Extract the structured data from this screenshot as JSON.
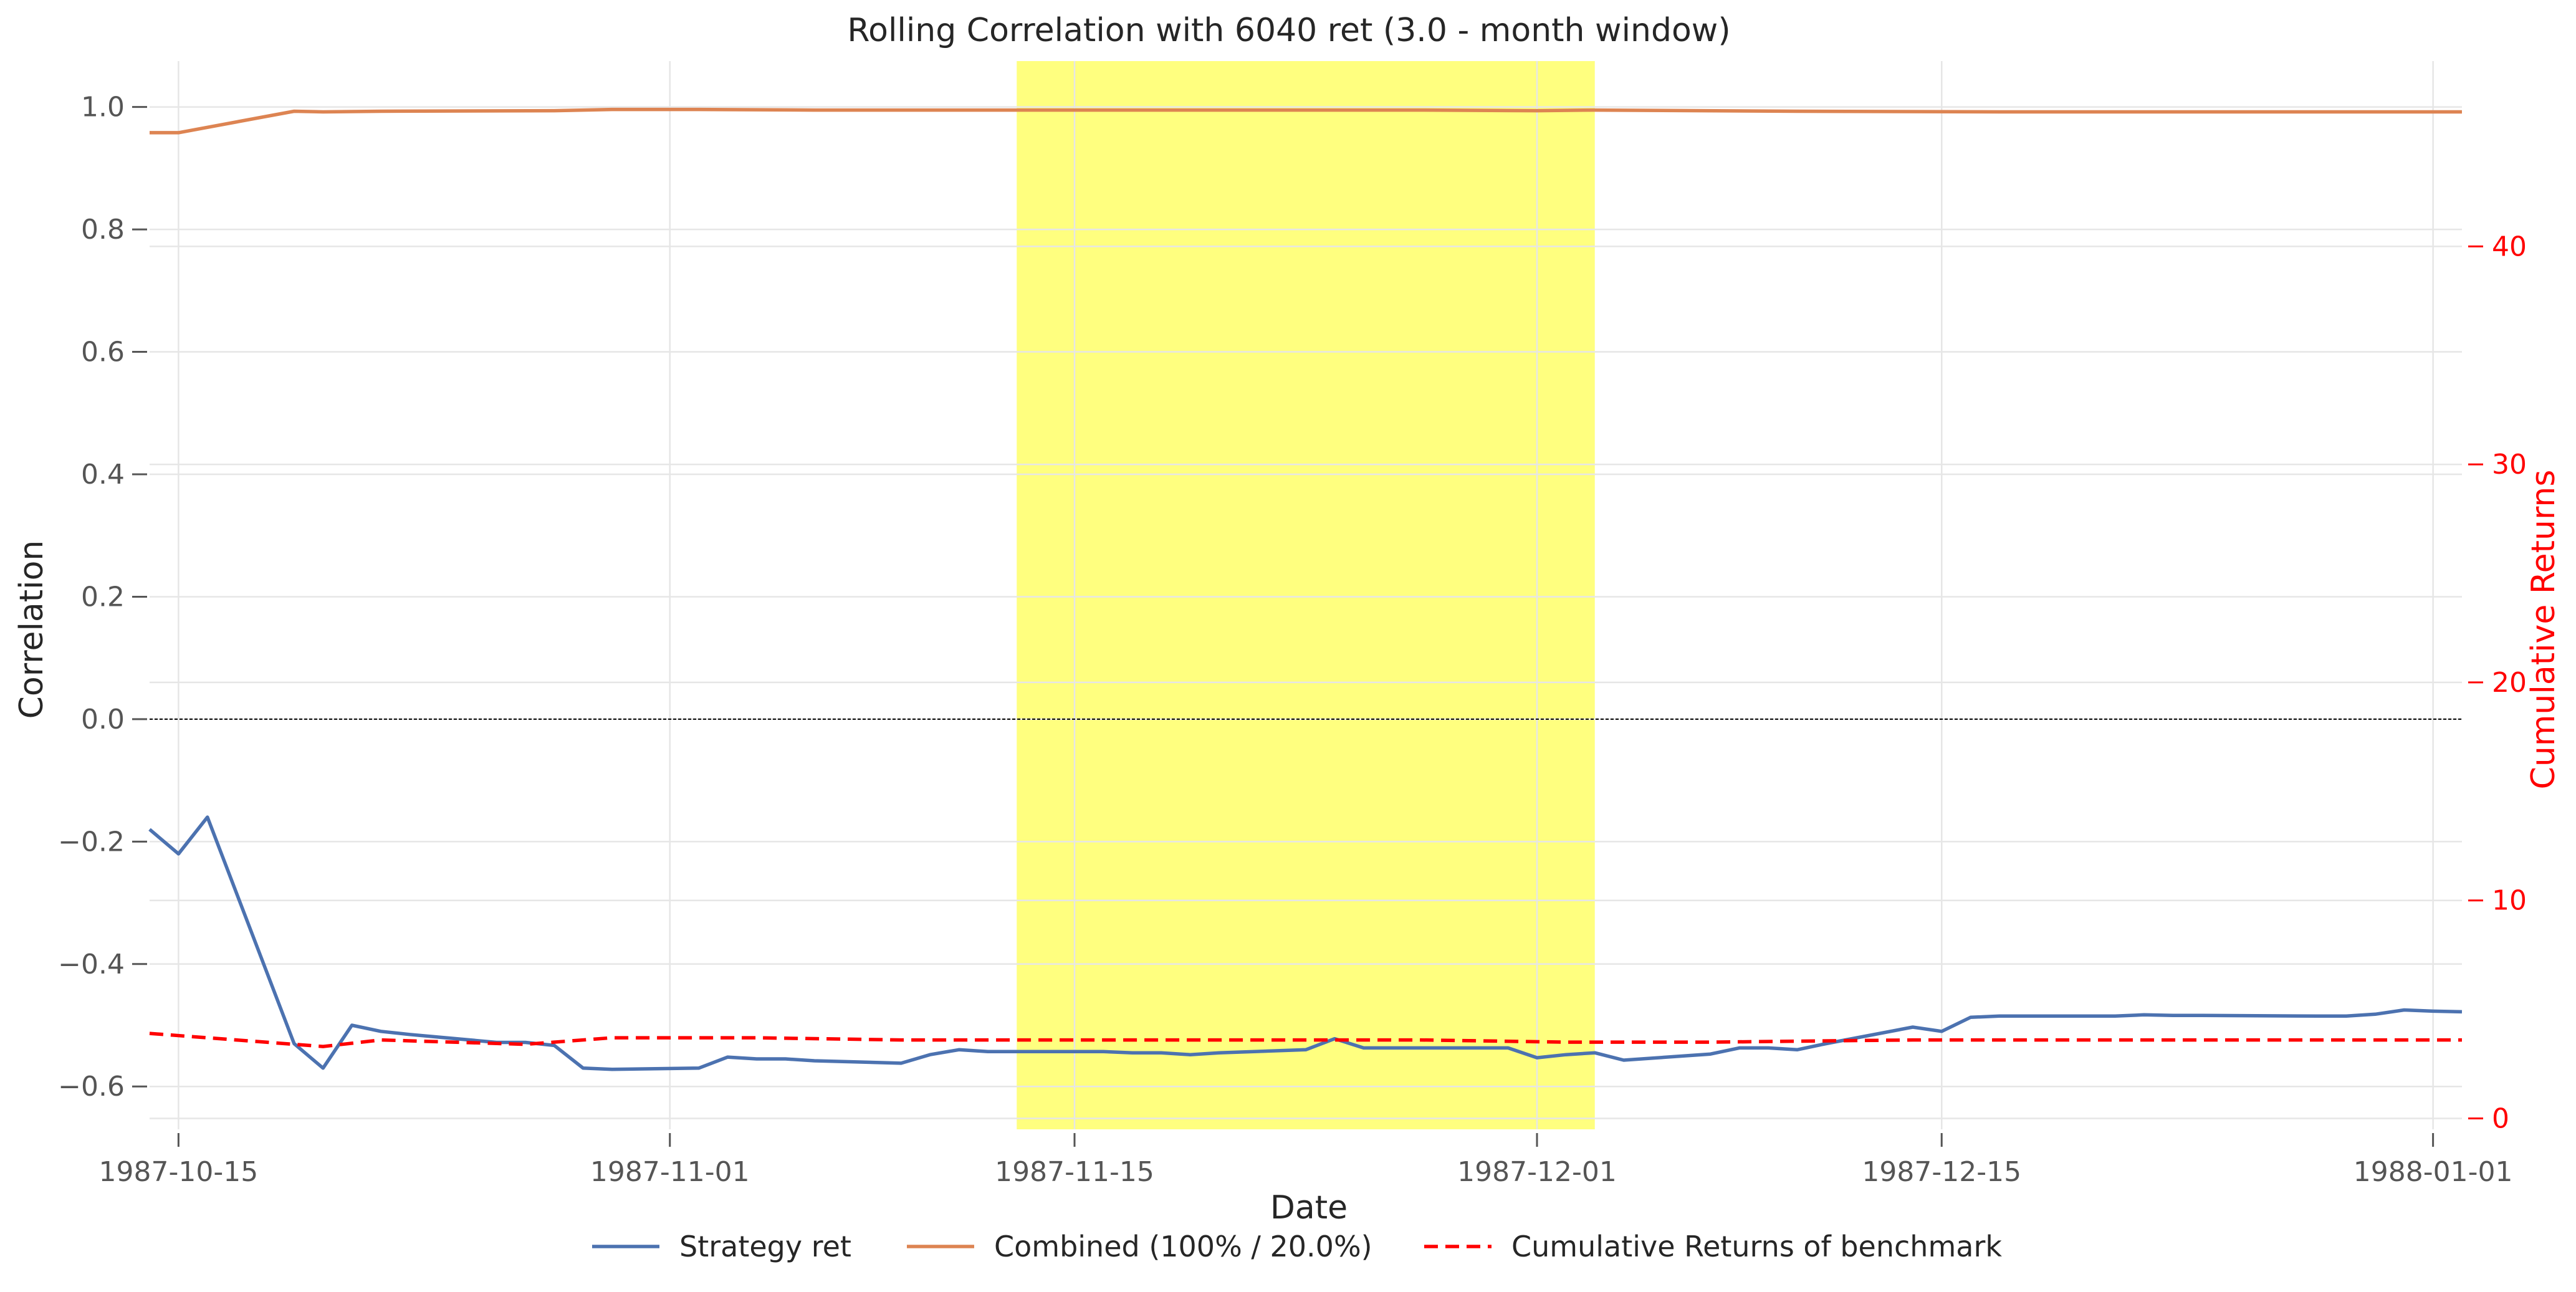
{
  "chart_data": {
    "type": "line",
    "title": "Rolling Correlation with 6040 ret (3.0 - month window)",
    "xlabel": "Date",
    "ylabel": "Correlation",
    "y2label": "Cumulative Returns",
    "xlim": [
      "1987-10-14",
      "1988-01-02"
    ],
    "ylim": [
      -0.67,
      1.075
    ],
    "y2lim": [
      -0.5,
      48.5
    ],
    "x_ticks": [
      "1987-10-15",
      "1987-11-01",
      "1987-11-15",
      "1987-12-01",
      "1987-12-15",
      "1988-01-01"
    ],
    "y_ticks": [
      -0.6,
      -0.4,
      -0.2,
      0.0,
      0.2,
      0.4,
      0.6,
      0.8,
      1.0
    ],
    "y_tick_labels": [
      "−0.6",
      "−0.4",
      "−0.2",
      "0.0",
      "0.2",
      "0.4",
      "0.6",
      "0.8",
      "1.0"
    ],
    "y2_ticks": [
      0,
      10,
      20,
      30,
      40
    ],
    "y2_tick_labels": [
      "0",
      "10",
      "20",
      "30",
      "40"
    ],
    "grid": true,
    "legend_position": "bottom-center",
    "highlight": {
      "x_start": "1987-11-13",
      "x_end": "1987-12-03",
      "color": "#ffff00"
    },
    "zero_line": 0.0,
    "series": [
      {
        "name": "Strategy ret",
        "color": "#4c72b0",
        "style": "solid",
        "axis": "left",
        "x": [
          "1987-10-14",
          "1987-10-15",
          "1987-10-16",
          "1987-10-19",
          "1987-10-20",
          "1987-10-21",
          "1987-10-22",
          "1987-10-23",
          "1987-10-26",
          "1987-10-27",
          "1987-10-28",
          "1987-10-29",
          "1987-10-30",
          "1987-11-02",
          "1987-11-03",
          "1987-11-04",
          "1987-11-05",
          "1987-11-06",
          "1987-11-09",
          "1987-11-10",
          "1987-11-11",
          "1987-11-12",
          "1987-11-13",
          "1987-11-16",
          "1987-11-17",
          "1987-11-18",
          "1987-11-19",
          "1987-11-20",
          "1987-11-23",
          "1987-11-24",
          "1987-11-25",
          "1987-11-27",
          "1987-11-30",
          "1987-12-01",
          "1987-12-02",
          "1987-12-03",
          "1987-12-04",
          "1987-12-07",
          "1987-12-08",
          "1987-12-09",
          "1987-12-10",
          "1987-12-11",
          "1987-12-14",
          "1987-12-15",
          "1987-12-16",
          "1987-12-17",
          "1987-12-18",
          "1987-12-21",
          "1987-12-22",
          "1987-12-23",
          "1987-12-24",
          "1987-12-28",
          "1987-12-29",
          "1987-12-30",
          "1987-12-31",
          "1988-01-01",
          "1988-01-02"
        ],
        "y": [
          -0.18,
          -0.22,
          -0.16,
          -0.53,
          -0.57,
          -0.5,
          -0.51,
          -0.515,
          -0.528,
          -0.528,
          -0.533,
          -0.57,
          -0.572,
          -0.57,
          -0.552,
          -0.555,
          -0.555,
          -0.558,
          -0.562,
          -0.548,
          -0.54,
          -0.543,
          -0.543,
          -0.543,
          -0.545,
          -0.545,
          -0.548,
          -0.545,
          -0.54,
          -0.522,
          -0.537,
          -0.537,
          -0.537,
          -0.553,
          -0.548,
          -0.545,
          -0.557,
          -0.547,
          -0.537,
          -0.537,
          -0.54,
          -0.53,
          -0.503,
          -0.51,
          -0.487,
          -0.485,
          -0.485,
          -0.485,
          -0.483,
          -0.484,
          -0.484,
          -0.485,
          -0.485,
          -0.482,
          -0.475,
          -0.477,
          -0.478
        ]
      },
      {
        "name": "Combined (100% / 20.0%)",
        "color": "#dd8452",
        "style": "solid",
        "axis": "left",
        "x": [
          "1987-10-14",
          "1987-10-15",
          "1987-10-19",
          "1987-10-20",
          "1987-10-22",
          "1987-10-28",
          "1987-10-30",
          "1987-11-02",
          "1987-11-06",
          "1987-11-13",
          "1987-11-20",
          "1987-11-27",
          "1987-12-01",
          "1987-12-03",
          "1987-12-10",
          "1987-12-17",
          "1987-12-24",
          "1987-12-31",
          "1988-01-02"
        ],
        "y": [
          0.958,
          0.958,
          0.993,
          0.992,
          0.993,
          0.994,
          0.996,
          0.996,
          0.995,
          0.995,
          0.995,
          0.995,
          0.994,
          0.995,
          0.993,
          0.992,
          0.992,
          0.992,
          0.992
        ]
      },
      {
        "name": "Cumulative Returns of benchmark",
        "color": "#ff0000",
        "style": "dashed",
        "axis": "right",
        "x": [
          "1987-10-14",
          "1987-10-16",
          "1987-10-20",
          "1987-10-22",
          "1987-10-27",
          "1987-10-30",
          "1987-11-04",
          "1987-11-09",
          "1987-11-13",
          "1987-11-20",
          "1987-11-27",
          "1987-12-02",
          "1987-12-07",
          "1987-12-14",
          "1987-12-21",
          "1987-12-28",
          "1988-01-02"
        ],
        "y": [
          3.9,
          3.7,
          3.3,
          3.6,
          3.4,
          3.7,
          3.7,
          3.6,
          3.6,
          3.6,
          3.6,
          3.5,
          3.5,
          3.6,
          3.6,
          3.6,
          3.6
        ]
      }
    ]
  }
}
